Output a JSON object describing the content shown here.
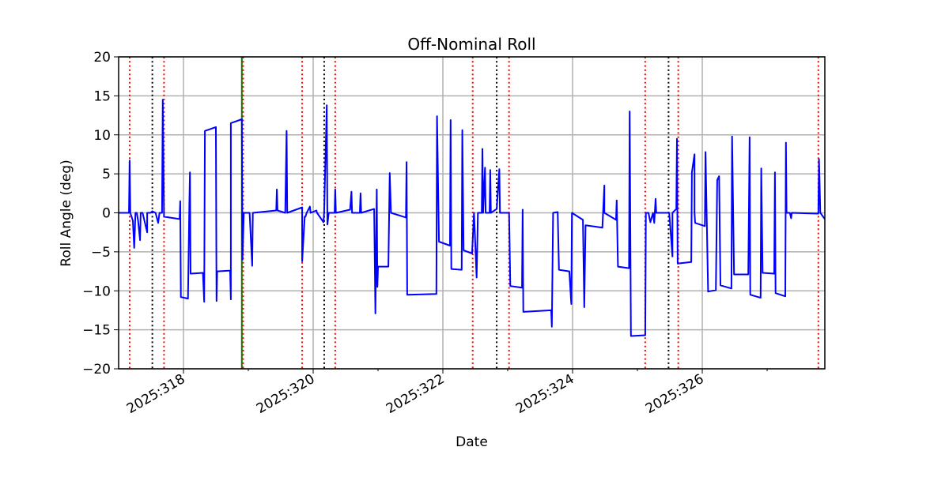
{
  "chart_data": {
    "type": "line",
    "title": "Off-Nominal Roll",
    "xlabel": "Date",
    "ylabel": "Roll Angle (deg)",
    "xlim": [
      317.0,
      327.89
    ],
    "ylim": [
      -20,
      20
    ],
    "grid": true,
    "x_unit": "day of year 2025",
    "xticks": [
      {
        "value": 318,
        "label": "2025:318"
      },
      {
        "value": 320,
        "label": "2025:320"
      },
      {
        "value": 322,
        "label": "2025:322"
      },
      {
        "value": 324,
        "label": "2025:324"
      },
      {
        "value": 326,
        "label": "2025:326"
      }
    ],
    "xminor": [
      317,
      319,
      321,
      323,
      325,
      327
    ],
    "yticks": [
      {
        "value": -20,
        "label": "−20"
      },
      {
        "value": -15,
        "label": "−15"
      },
      {
        "value": -10,
        "label": "−10"
      },
      {
        "value": -5,
        "label": "−5"
      },
      {
        "value": 0,
        "label": "0"
      },
      {
        "value": 5,
        "label": "5"
      },
      {
        "value": 10,
        "label": "10"
      },
      {
        "value": 15,
        "label": "15"
      },
      {
        "value": 20,
        "label": "20"
      }
    ],
    "vlines": {
      "red_dotted": [
        317.17,
        317.7,
        318.92,
        319.83,
        320.34,
        322.46,
        323.02,
        325.12,
        325.63,
        327.79
      ],
      "black_dotted": [
        317.52,
        320.17,
        322.83,
        325.48
      ],
      "green_solid": [
        318.9
      ]
    },
    "colors": {
      "series": "#0000ff",
      "red": "#ff0000",
      "black": "#000000",
      "green": "#008000",
      "grid": "#b0b0b0"
    },
    "series": [
      {
        "name": "Roll",
        "x": [
          317.0,
          317.16,
          317.17,
          317.18,
          317.22,
          317.24,
          317.26,
          317.28,
          317.3,
          317.33,
          317.34,
          317.37,
          317.44,
          317.44,
          317.45,
          317.49,
          317.52,
          317.57,
          317.61,
          317.63,
          317.67,
          317.68,
          317.7,
          317.94,
          317.95,
          317.96,
          318.07,
          318.09,
          318.1,
          318.11,
          318.3,
          318.32,
          318.33,
          318.5,
          318.51,
          318.52,
          318.72,
          318.73,
          318.73,
          318.9,
          318.91,
          318.93,
          319.02,
          319.06,
          319.07,
          319.43,
          319.44,
          319.45,
          319.57,
          319.59,
          319.6,
          319.83,
          319.83,
          319.87,
          319.88,
          319.9,
          319.95,
          319.96,
          320.05,
          320.06,
          320.16,
          320.17,
          320.21,
          320.22,
          320.24,
          320.33,
          320.34,
          320.35,
          320.57,
          320.59,
          320.6,
          320.72,
          320.73,
          320.74,
          320.94,
          320.96,
          320.98,
          320.99,
          321.0,
          321.16,
          321.18,
          321.2,
          321.43,
          321.44,
          321.45,
          321.9,
          321.91,
          321.94,
          322.11,
          322.12,
          322.13,
          322.29,
          322.3,
          322.32,
          322.45,
          322.48,
          322.52,
          322.54,
          322.6,
          322.61,
          322.62,
          322.65,
          322.66,
          322.72,
          322.73,
          322.74,
          322.83,
          322.87,
          322.88,
          322.94,
          323.02,
          323.04,
          323.22,
          323.23,
          323.24,
          323.67,
          323.68,
          323.7,
          323.77,
          323.79,
          323.95,
          323.98,
          323.99,
          324.16,
          324.18,
          324.2,
          324.46,
          324.49,
          324.49,
          324.67,
          324.68,
          324.7,
          324.87,
          324.88,
          324.9,
          325.12,
          325.13,
          325.17,
          325.2,
          325.24,
          325.26,
          325.28,
          325.29,
          325.49,
          325.5,
          325.54,
          325.54,
          325.6,
          325.61,
          325.62,
          325.83,
          325.84,
          325.88,
          325.88,
          325.89,
          326.04,
          326.05,
          326.09,
          326.21,
          326.23,
          326.26,
          326.28,
          326.45,
          326.46,
          326.49,
          326.71,
          326.73,
          326.74,
          326.9,
          326.91,
          326.93,
          327.11,
          327.12,
          327.13,
          327.28,
          327.29,
          327.3,
          327.35,
          327.37,
          327.38,
          327.79,
          327.8,
          327.82,
          327.89
        ],
        "y": [
          0,
          0,
          6.7,
          0,
          -1,
          -4.5,
          0,
          0,
          -1,
          -3.5,
          0,
          0,
          -2.5,
          0,
          0,
          0,
          0.2,
          0,
          -1.3,
          0,
          0,
          14.5,
          -0.5,
          -0.8,
          1.5,
          -10.8,
          -11,
          1,
          5.2,
          -7.8,
          -7.7,
          -11.4,
          10.5,
          11,
          -11.3,
          -7.5,
          -7.4,
          -11.1,
          11.5,
          12,
          -6,
          0,
          0,
          -6.8,
          0,
          0.3,
          3,
          0.3,
          0,
          10.5,
          0,
          0.7,
          -6.2,
          -0.5,
          -0.5,
          0,
          0.8,
          0,
          0.3,
          0,
          -1.2,
          0.2,
          13.8,
          -1.5,
          0,
          0,
          3,
          0,
          0.4,
          2.7,
          0,
          0,
          2.5,
          0,
          0.5,
          -12.9,
          3,
          -9.5,
          -6.9,
          -6.9,
          5.1,
          0,
          -0.6,
          6.5,
          -10.5,
          -10.4,
          12.4,
          -3.7,
          -4.2,
          11.9,
          -7.2,
          -7.3,
          10.6,
          -4.8,
          -5.2,
          0,
          -8.3,
          0,
          0,
          8.2,
          0,
          5.8,
          0,
          0,
          5.5,
          0,
          0.5,
          5.6,
          0,
          0,
          0,
          -9.4,
          -9.6,
          0.4,
          -12.7,
          -12.5,
          -14.6,
          0,
          0.1,
          -7.3,
          -7.5,
          -11.7,
          0,
          -0.9,
          -12.1,
          -1.6,
          -1.9,
          3.5,
          0,
          -0.9,
          1.6,
          -6.9,
          -7.1,
          13,
          -15.8,
          -15.7,
          0,
          0,
          -1.2,
          0,
          -1.3,
          1.8,
          0,
          0,
          -1,
          -5.6,
          0,
          0.5,
          9.5,
          -6.5,
          -6.3,
          5.2,
          7.5,
          0,
          -1.3,
          -1.7,
          7.8,
          -10.1,
          -9.9,
          4.2,
          4.7,
          -9.3,
          -9.7,
          9.8,
          -7.9,
          -7.9,
          9.7,
          -10.5,
          -10.9,
          5.7,
          -7.7,
          -7.8,
          5.2,
          -10.3,
          -10.7,
          9,
          0,
          0,
          -0.7,
          0,
          -0.1,
          6.9,
          0,
          -0.8
        ]
      }
    ]
  }
}
